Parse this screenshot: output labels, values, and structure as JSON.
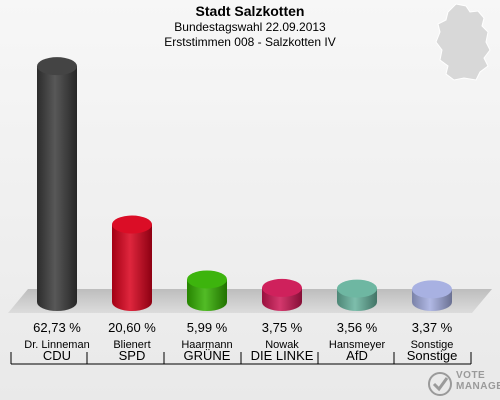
{
  "header": {
    "title": "Stadt Salzkotten",
    "subtitle1": "Bundestagswahl 22.09.2013",
    "subtitle2": "Erststimmen 008 - Salzkotten IV"
  },
  "chart_data": {
    "type": "bar",
    "title": "Stadt Salzkotten",
    "xlabel": "",
    "ylabel": "",
    "ylim": [
      0,
      70
    ],
    "grid": false,
    "categories": [
      "CDU",
      "SPD",
      "GRÜNE",
      "DIE LINKE",
      "AfD",
      "Sonstige"
    ],
    "candidates": [
      "Dr. Linneman",
      "Blienert",
      "Haarmann",
      "Nowak",
      "Hansmeyer",
      "Sonstige"
    ],
    "values": [
      62.73,
      20.6,
      5.99,
      3.75,
      3.56,
      3.37
    ],
    "value_labels": [
      "62,73 %",
      "20,60 %",
      "5,99 %",
      "3,75 %",
      "3,56 %",
      "3,37 %"
    ],
    "colors": [
      "#3a3a3a",
      "#d9001b",
      "#33b000",
      "#cc1553",
      "#66b39d",
      "#a3ade0"
    ]
  },
  "logo": {
    "line1": "VOTE",
    "line2": "MANAGER",
    "icon": "vote-check-icon"
  },
  "map": {
    "icon": "germany-map-icon"
  }
}
